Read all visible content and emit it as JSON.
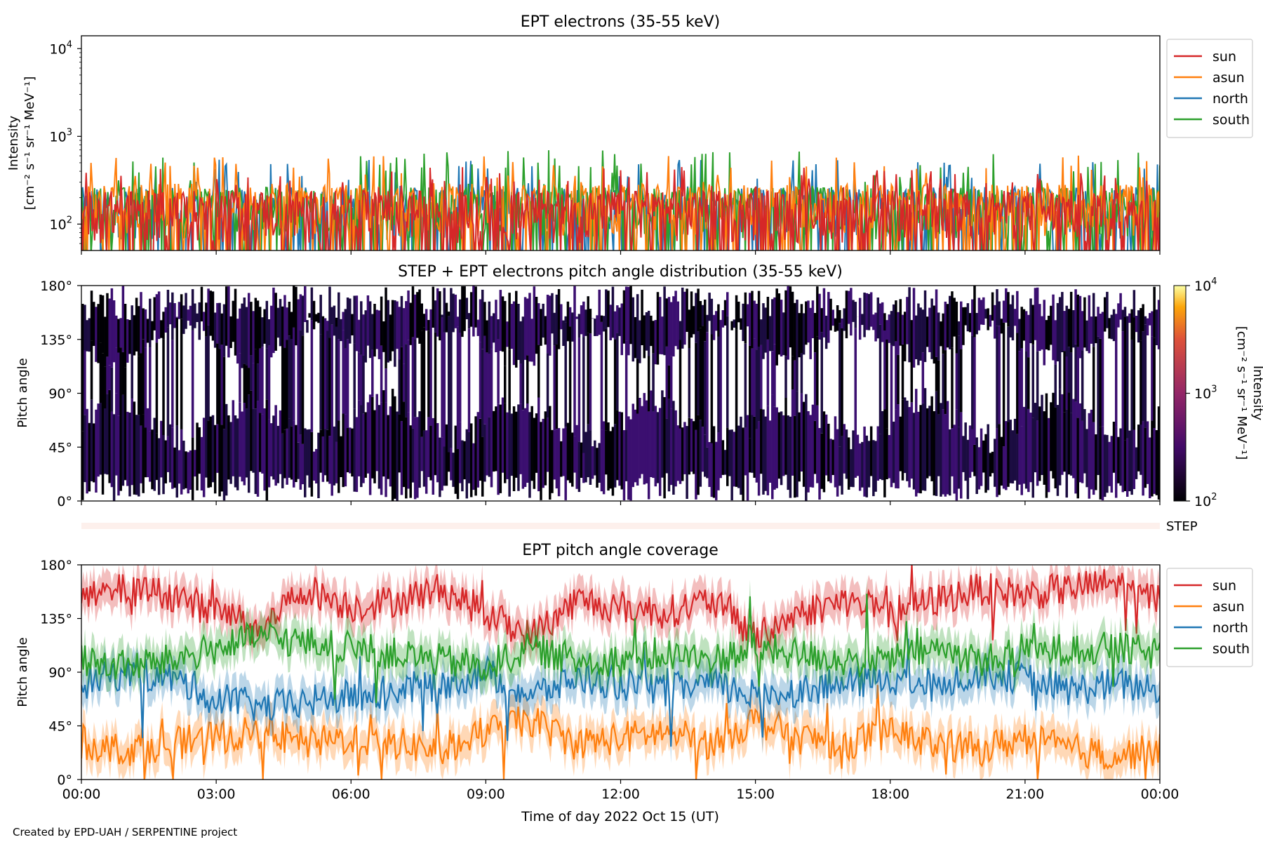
{
  "footer": {
    "credit": "Created by EPD-UAH / SERPENTINE project"
  },
  "colors": {
    "sun": "#d62728",
    "asun": "#ff7f0e",
    "north": "#1f77b4",
    "south": "#2ca02c"
  },
  "chart_data": [
    {
      "id": "intensity",
      "type": "line",
      "title": "EPT electrons (35-55 keV)",
      "ylabel_line1": "Intensity",
      "ylabel_line2": "[cm⁻² s⁻¹ sr⁻¹ MeV⁻¹]",
      "yscale": "log",
      "ylim": [
        50,
        14000
      ],
      "yticks": [
        {
          "value": 100,
          "base": "10",
          "exp": "2"
        },
        {
          "value": 1000,
          "base": "10",
          "exp": "3"
        },
        {
          "value": 10000,
          "base": "10",
          "exp": "4"
        }
      ],
      "legend": {
        "placement": "outside-right",
        "entries": [
          "sun",
          "asun",
          "north",
          "south"
        ]
      },
      "series": [
        {
          "name": "north",
          "color": "#1f77b4",
          "typical": 110,
          "max_spike": 550
        },
        {
          "name": "south",
          "color": "#2ca02c",
          "typical": 110,
          "max_spike": 700
        },
        {
          "name": "asun",
          "color": "#ff7f0e",
          "typical": 120,
          "max_spike": 620
        },
        {
          "name": "sun",
          "color": "#d62728",
          "typical": 100,
          "max_spike": 450
        }
      ]
    },
    {
      "id": "pad",
      "type": "heatmap",
      "title": "STEP + EPT electrons pitch angle distribution (35-55 keV)",
      "ylabel": "Pitch angle",
      "yticks": [
        "0°",
        "45°",
        "90°",
        "135°",
        "180°"
      ],
      "ylim": [
        0,
        180
      ],
      "colorbar": {
        "scale": "log",
        "range": [
          100,
          10000
        ],
        "label_line1": "Intensity",
        "label_line2": "[cm⁻² s⁻¹ sr⁻¹ MeV⁻¹]",
        "ticks": [
          {
            "base": "10",
            "exp": "2"
          },
          {
            "base": "10",
            "exp": "3"
          },
          {
            "base": "10",
            "exp": "4"
          }
        ]
      }
    },
    {
      "id": "step",
      "type": "heatmap",
      "label": "STEP"
    },
    {
      "id": "coverage",
      "type": "line",
      "title": "EPT pitch angle coverage",
      "ylabel": "Pitch angle",
      "yticks": [
        "0°",
        "45°",
        "90°",
        "135°",
        "180°"
      ],
      "ylim": [
        0,
        180
      ],
      "legend": {
        "placement": "outside-right",
        "entries": [
          "sun",
          "asun",
          "north",
          "south"
        ]
      },
      "series": [
        {
          "name": "sun",
          "color": "#d62728",
          "hours": [
            0,
            1,
            2,
            3,
            4,
            5,
            6,
            7,
            8,
            9,
            10,
            11,
            12,
            13,
            14,
            15,
            16,
            17,
            18,
            19,
            20,
            21,
            22,
            23,
            24
          ],
          "values": [
            150,
            160,
            155,
            140,
            130,
            160,
            145,
            150,
            160,
            140,
            120,
            150,
            145,
            140,
            150,
            120,
            140,
            150,
            140,
            150,
            160,
            155,
            160,
            165,
            150
          ]
        },
        {
          "name": "asun",
          "color": "#ff7f0e",
          "hours": [
            0,
            1,
            2,
            3,
            4,
            5,
            6,
            7,
            8,
            9,
            10,
            11,
            12,
            13,
            14,
            15,
            16,
            17,
            18,
            19,
            20,
            21,
            22,
            23,
            24
          ],
          "values": [
            30,
            25,
            30,
            35,
            40,
            30,
            35,
            30,
            25,
            40,
            50,
            30,
            35,
            40,
            30,
            50,
            35,
            30,
            40,
            30,
            25,
            35,
            25,
            20,
            25
          ]
        },
        {
          "name": "north",
          "color": "#1f77b4",
          "hours": [
            0,
            1,
            2,
            3,
            4,
            5,
            6,
            7,
            8,
            9,
            10,
            11,
            12,
            13,
            14,
            15,
            16,
            17,
            18,
            19,
            20,
            21,
            22,
            23,
            24
          ],
          "values": [
            80,
            90,
            85,
            70,
            60,
            65,
            70,
            75,
            80,
            90,
            70,
            85,
            80,
            75,
            80,
            70,
            75,
            80,
            85,
            80,
            90,
            85,
            75,
            80,
            75
          ]
        },
        {
          "name": "south",
          "color": "#2ca02c",
          "hours": [
            0,
            1,
            2,
            3,
            4,
            5,
            6,
            7,
            8,
            9,
            10,
            11,
            12,
            13,
            14,
            15,
            16,
            17,
            18,
            19,
            20,
            21,
            22,
            23,
            24
          ],
          "values": [
            100,
            95,
            100,
            110,
            120,
            115,
            110,
            105,
            100,
            95,
            110,
            100,
            100,
            105,
            100,
            110,
            105,
            100,
            100,
            110,
            100,
            105,
            110,
            110,
            105
          ]
        }
      ]
    }
  ],
  "xaxis": {
    "label": "Time of day 2022 Oct 15 (UT)",
    "range_hours": [
      0,
      24
    ],
    "ticks": [
      {
        "hour": 0,
        "label": "00:00"
      },
      {
        "hour": 3,
        "label": "03:00"
      },
      {
        "hour": 6,
        "label": "06:00"
      },
      {
        "hour": 9,
        "label": "09:00"
      },
      {
        "hour": 12,
        "label": "12:00"
      },
      {
        "hour": 15,
        "label": "15:00"
      },
      {
        "hour": 18,
        "label": "18:00"
      },
      {
        "hour": 21,
        "label": "21:00"
      },
      {
        "hour": 24,
        "label": "00:00"
      }
    ]
  }
}
